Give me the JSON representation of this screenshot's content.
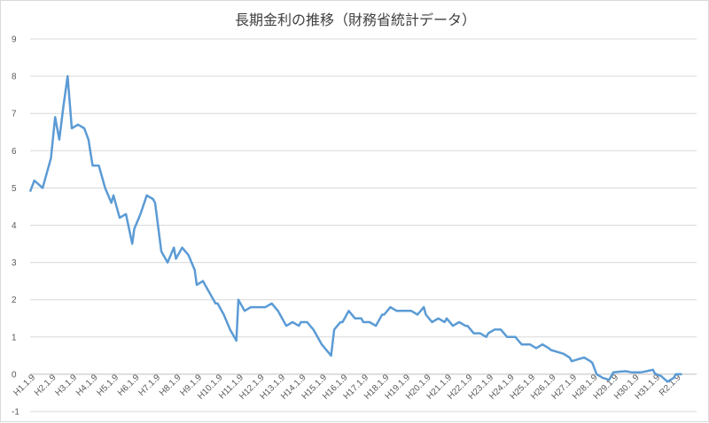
{
  "chart_data": {
    "type": "line",
    "title": "長期金利の推移（財務省統計データ）",
    "xlabel": "",
    "ylabel": "",
    "ylim": [
      -1,
      9
    ],
    "yticks": [
      -1,
      0,
      1,
      2,
      3,
      4,
      5,
      6,
      7,
      8,
      9
    ],
    "grid": true,
    "categories": [
      "H1.1.9",
      "H2.1.9",
      "H3.1.9",
      "H4.1.9",
      "H5.1.9",
      "H6.1.9",
      "H7.1.9",
      "H8.1.9",
      "H9.1.9",
      "H10.1.9",
      "H11.1.9",
      "H12.1.9",
      "H13.1.9",
      "H14.1.9",
      "H15.1.9",
      "H16.1.9",
      "H17.1.9",
      "H18.1.9",
      "H19.1.9",
      "H20.1.9",
      "H21.1.9",
      "H22.1.9",
      "H23.1.9",
      "H24.1.9",
      "H25.1.9",
      "H26.1.9",
      "H27.1.9",
      "H28.1.9",
      "H29.1.9",
      "H30.1.9",
      "H31.1.9",
      "R2.1.9"
    ],
    "series": [
      {
        "color": "#5b9bd5",
        "x": [
          1989.0,
          1989.2,
          1989.4,
          1989.6,
          1989.8,
          1990.0,
          1990.2,
          1990.4,
          1990.6,
          1990.8,
          1991.0,
          1991.3,
          1991.6,
          1991.8,
          1992.0,
          1992.3,
          1992.6,
          1992.9,
          1993.0,
          1993.3,
          1993.6,
          1993.9,
          1994.0,
          1994.3,
          1994.6,
          1994.9,
          1995.0,
          1995.3,
          1995.6,
          1995.9,
          1996.0,
          1996.3,
          1996.6,
          1996.9,
          1997.0,
          1997.3,
          1997.6,
          1997.9,
          1998.0,
          1998.3,
          1998.6,
          1998.9,
          1999.0,
          1999.3,
          1999.6,
          1999.9,
          2000.0,
          2000.3,
          2000.6,
          2000.9,
          2001.0,
          2001.3,
          2001.6,
          2001.9,
          2002.0,
          2002.3,
          2002.6,
          2002.9,
          2003.0,
          2003.3,
          2003.45,
          2003.6,
          2003.9,
          2004.0,
          2004.3,
          2004.6,
          2004.9,
          2005.0,
          2005.3,
          2005.6,
          2005.9,
          2006.0,
          2006.3,
          2006.6,
          2006.9,
          2007.0,
          2007.3,
          2007.6,
          2007.9,
          2008.0,
          2008.3,
          2008.6,
          2008.9,
          2009.0,
          2009.3,
          2009.6,
          2009.9,
          2010.0,
          2010.3,
          2010.6,
          2010.9,
          2011.0,
          2011.3,
          2011.6,
          2011.9,
          2012.0,
          2012.3,
          2012.6,
          2012.9,
          2013.0,
          2013.3,
          2013.6,
          2013.9,
          2014.0,
          2014.3,
          2014.6,
          2014.9,
          2015.0,
          2015.3,
          2015.6,
          2015.9,
          2016.0,
          2016.2,
          2016.5,
          2016.8,
          2017.0,
          2017.3,
          2017.6,
          2017.9,
          2018.0,
          2018.3,
          2018.6,
          2018.9,
          2019.0,
          2019.3,
          2019.6,
          2019.9,
          2020.0,
          2020.3
        ],
        "y": [
          4.9,
          5.2,
          5.1,
          5.0,
          5.4,
          5.8,
          6.9,
          6.3,
          7.2,
          8.0,
          6.6,
          6.7,
          6.6,
          6.3,
          5.6,
          5.6,
          5.0,
          4.6,
          4.8,
          4.2,
          4.3,
          3.5,
          3.9,
          4.3,
          4.8,
          4.7,
          4.6,
          3.3,
          3.0,
          3.4,
          3.1,
          3.4,
          3.2,
          2.8,
          2.4,
          2.5,
          2.2,
          1.9,
          1.9,
          1.6,
          1.2,
          0.9,
          2.0,
          1.7,
          1.8,
          1.8,
          1.8,
          1.8,
          1.9,
          1.7,
          1.6,
          1.3,
          1.4,
          1.3,
          1.4,
          1.4,
          1.2,
          0.9,
          0.8,
          0.6,
          0.5,
          1.2,
          1.4,
          1.4,
          1.7,
          1.5,
          1.5,
          1.4,
          1.4,
          1.3,
          1.6,
          1.6,
          1.8,
          1.7,
          1.7,
          1.7,
          1.7,
          1.6,
          1.8,
          1.6,
          1.4,
          1.5,
          1.4,
          1.5,
          1.3,
          1.4,
          1.3,
          1.3,
          1.1,
          1.1,
          1.0,
          1.1,
          1.2,
          1.2,
          1.0,
          1.0,
          1.0,
          0.8,
          0.8,
          0.8,
          0.7,
          0.8,
          0.7,
          0.65,
          0.6,
          0.55,
          0.45,
          0.35,
          0.4,
          0.45,
          0.35,
          0.3,
          0.0,
          -0.1,
          -0.15,
          0.05,
          0.07,
          0.08,
          0.05,
          0.05,
          0.05,
          0.08,
          0.12,
          0.02,
          -0.05,
          -0.2,
          -0.1,
          0.0,
          0.0
        ]
      }
    ]
  }
}
